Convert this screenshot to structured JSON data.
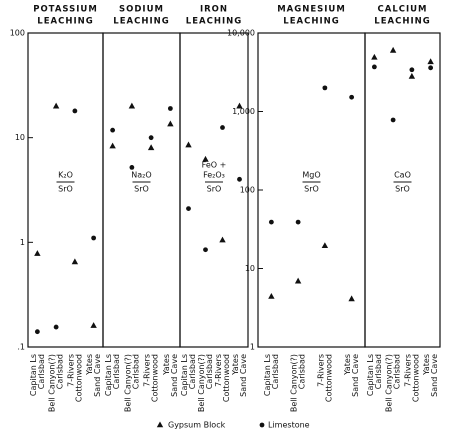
{
  "chart_data": [
    {
      "type": "scatter",
      "title": [
        "POTASSIUM",
        "LEACHING"
      ],
      "ratio": {
        "numerator": [
          "K₂O"
        ],
        "denominator": "SrO"
      },
      "categories": [
        "Capitan Ls",
        "Bell Canyon(?)",
        "7-Rivers",
        "Yates"
      ],
      "formations": [
        "Carlsbad",
        "Carlsbad",
        "Cottonwood",
        "Sand Cave"
      ],
      "log": true,
      "ylim": [
        0.1,
        100
      ],
      "yticks": [
        100,
        10,
        1,
        {
          "value": 0.1,
          "label": ".1"
        }
      ],
      "series": [
        {
          "name": "Gypsum Block",
          "marker": "triangle",
          "color": "#111111",
          "values": [
            0.78,
            20,
            0.65,
            0.16
          ]
        },
        {
          "name": "Limestone",
          "marker": "circle",
          "color": "#111111",
          "values": [
            0.14,
            0.155,
            18,
            1.1
          ]
        }
      ]
    },
    {
      "type": "scatter",
      "title": [
        "SODIUM",
        "LEACHING"
      ],
      "ratio": {
        "numerator": [
          "Na₂O"
        ],
        "denominator": "SrO"
      },
      "categories": [
        "Capitan Ls",
        "Bell Canyon(?)",
        "7-Rivers",
        "Yates"
      ],
      "formations": [
        "Carlsbad",
        "Carlsbad",
        "Cottonwood",
        "Sand Cave"
      ],
      "log": true,
      "ylim": [
        0.1,
        100
      ],
      "series": [
        {
          "marker": "triangle",
          "color": "#111111",
          "values": [
            8.3,
            20,
            8,
            13.5
          ]
        },
        {
          "marker": "circle",
          "color": "#111111",
          "values": [
            11.8,
            5.2,
            10,
            19
          ]
        }
      ]
    },
    {
      "type": "scatter",
      "title": [
        "IRON",
        "LEACHING"
      ],
      "ratio": {
        "numerator": [
          "FeO +",
          "Fe₂O₃"
        ],
        "denominator": "SrO"
      },
      "categories": [
        "Capitan Ls",
        "Bell Canyon(?)",
        "7-Rivers",
        "Yates"
      ],
      "formations": [
        "Carlsbad",
        "Carlsbad",
        "Cottonwood",
        "Sand Cave"
      ],
      "log": true,
      "ylim": [
        0.1,
        100
      ],
      "series": [
        {
          "marker": "triangle",
          "color": "#111111",
          "values": [
            8.5,
            6.2,
            1.05,
            20
          ]
        },
        {
          "marker": "circle",
          "color": "#111111",
          "values": [
            2.1,
            0.85,
            12.5,
            4
          ]
        }
      ]
    },
    {
      "type": "scatter",
      "title": [
        "MAGNESIUM",
        "LEACHING"
      ],
      "ratio": {
        "numerator": [
          "MgO"
        ],
        "denominator": "SrO"
      },
      "categories": [
        "Capitan Ls",
        "Bell Canyon(?)",
        "7-Rivers",
        "Yates"
      ],
      "formations": [
        "Carlsbad",
        "Carlsbad",
        "Cottonwood",
        "Sand Cave"
      ],
      "log": true,
      "ylim": [
        1,
        10000
      ],
      "yticks": [
        {
          "value": 10000,
          "label": "10,000"
        },
        {
          "value": 1000,
          "label": "1,000"
        },
        100,
        10,
        1
      ],
      "series": [
        {
          "marker": "triangle",
          "color": "#111111",
          "values": [
            4.4,
            6.9,
            19.5,
            4.1
          ]
        },
        {
          "marker": "circle",
          "color": "#111111",
          "values": [
            39,
            39,
            2000,
            1520
          ]
        }
      ]
    },
    {
      "type": "scatter",
      "title": [
        "CALCIUM",
        "LEACHING"
      ],
      "ratio": {
        "numerator": [
          "CaO"
        ],
        "denominator": "SrO"
      },
      "categories": [
        "Capitan Ls",
        "Bell Canyon(?)",
        "7-Rivers",
        "Yates"
      ],
      "formations": [
        "Carlsbad",
        "Carlsbad",
        "Cottonwood",
        "Sand Cave"
      ],
      "log": true,
      "ylim": [
        1,
        10000
      ],
      "series": [
        {
          "marker": "triangle",
          "color": "#111111",
          "values": [
            4900,
            6000,
            2800,
            4300
          ]
        },
        {
          "marker": "circle",
          "color": "#111111",
          "values": [
            3700,
            780,
            3400,
            3600
          ]
        }
      ]
    }
  ]
}
